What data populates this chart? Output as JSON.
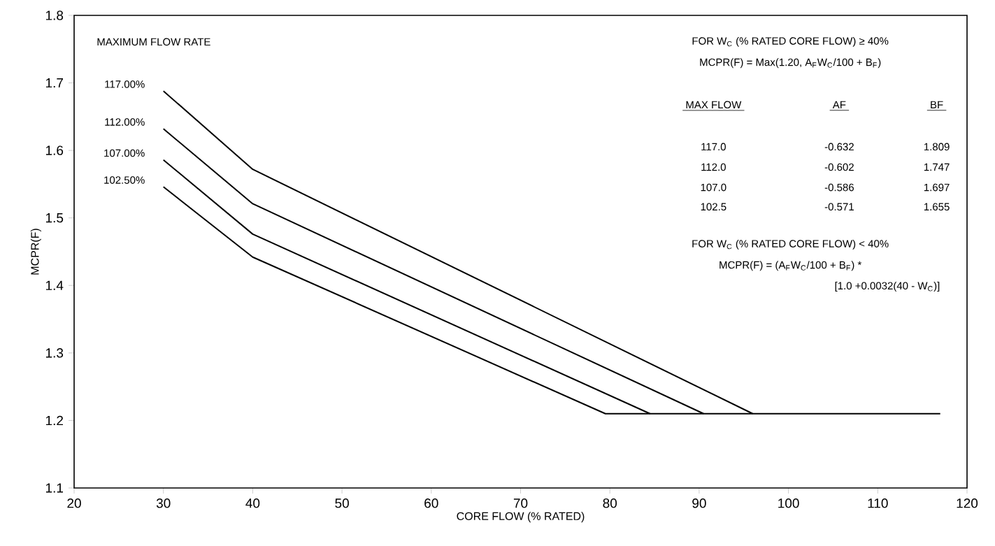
{
  "chart_data": {
    "type": "line",
    "xlabel": "CORE FLOW (% RATED)",
    "ylabel": "MCPR(F)",
    "legend_title": "MAXIMUM FLOW RATE",
    "xlim": [
      20,
      120
    ],
    "xticks": [
      20,
      30,
      40,
      50,
      60,
      70,
      80,
      90,
      100,
      110,
      120
    ],
    "ylim": [
      1.1,
      1.8
    ],
    "yticks": [
      1.1,
      1.2,
      1.3,
      1.4,
      1.5,
      1.6,
      1.7,
      1.8
    ],
    "grid": false,
    "legend": false,
    "marker": "none",
    "line_style": "solid",
    "series": [
      {
        "name": "117.00%",
        "color": "#000000",
        "x": [
          30,
          40,
          96
        ],
        "values": [
          1.688,
          1.572,
          1.21
        ]
      },
      {
        "name": "112.00%",
        "color": "#000000",
        "x": [
          30,
          40,
          90.5
        ],
        "values": [
          1.632,
          1.521,
          1.21
        ]
      },
      {
        "name": "107.00%",
        "color": "#000000",
        "x": [
          30,
          40,
          84.5
        ],
        "values": [
          1.586,
          1.476,
          1.21
        ]
      },
      {
        "name": "102.50%",
        "color": "#000000",
        "x": [
          30,
          40,
          79.5,
          117
        ],
        "values": [
          1.546,
          1.442,
          1.21,
          1.21
        ]
      }
    ],
    "annotations": [
      "FOR W$_{C}$ (% RATED CORE FLOW) ≥ 40%",
      "MCPR(F) = Max(1.20, A$_{F}$W$_{C}$/100 + B$_{F}$)",
      "MAX FLOW",
      "AF",
      "BF",
      "117.0",
      "-0.632",
      "1.809",
      "112.0",
      "-0.602",
      "1.747",
      "107.0",
      "-0.586",
      "1.697",
      "102.5",
      "-0.571",
      "1.655",
      "FOR W$_{C}$ (% RATED CORE FLOW) < 40%",
      "MCPR(F) = (A$_{F}$W$_{C}$/100 + B$_{F}$) *",
      "[1.0 +0.0032(40 - W$_{C}$)]"
    ]
  }
}
